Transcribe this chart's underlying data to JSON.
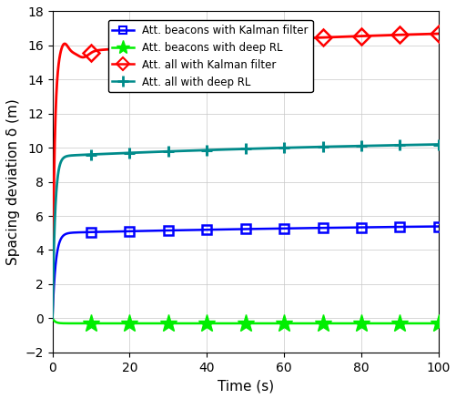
{
  "xlabel": "Time (s)",
  "ylabel": "Spacing deviation δ (m)",
  "xlim": [
    0,
    100
  ],
  "ylim": [
    -2,
    18
  ],
  "yticks": [
    -2,
    0,
    2,
    4,
    6,
    8,
    10,
    12,
    14,
    16,
    18
  ],
  "xticks": [
    0,
    20,
    40,
    60,
    80,
    100
  ],
  "series": {
    "blue_kalman": {
      "label": "Att. beacons with Kalman filter",
      "color": "#0000FF",
      "marker": "s",
      "markersize": 7,
      "linewidth": 1.8
    },
    "green_rl": {
      "label": "Att. beacons with deep RL",
      "color": "#00EE00",
      "marker": "*",
      "markersize": 14,
      "linewidth": 1.8
    },
    "red_kalman": {
      "label": "Att. all with Kalman filter",
      "color": "#FF0000",
      "marker": "D",
      "markersize": 9,
      "linewidth": 2.0
    },
    "teal_rl": {
      "label": "Att. all with deep RL",
      "color": "#008B8B",
      "marker": "+",
      "markersize": 9,
      "linewidth": 2.0
    }
  },
  "grid": true
}
